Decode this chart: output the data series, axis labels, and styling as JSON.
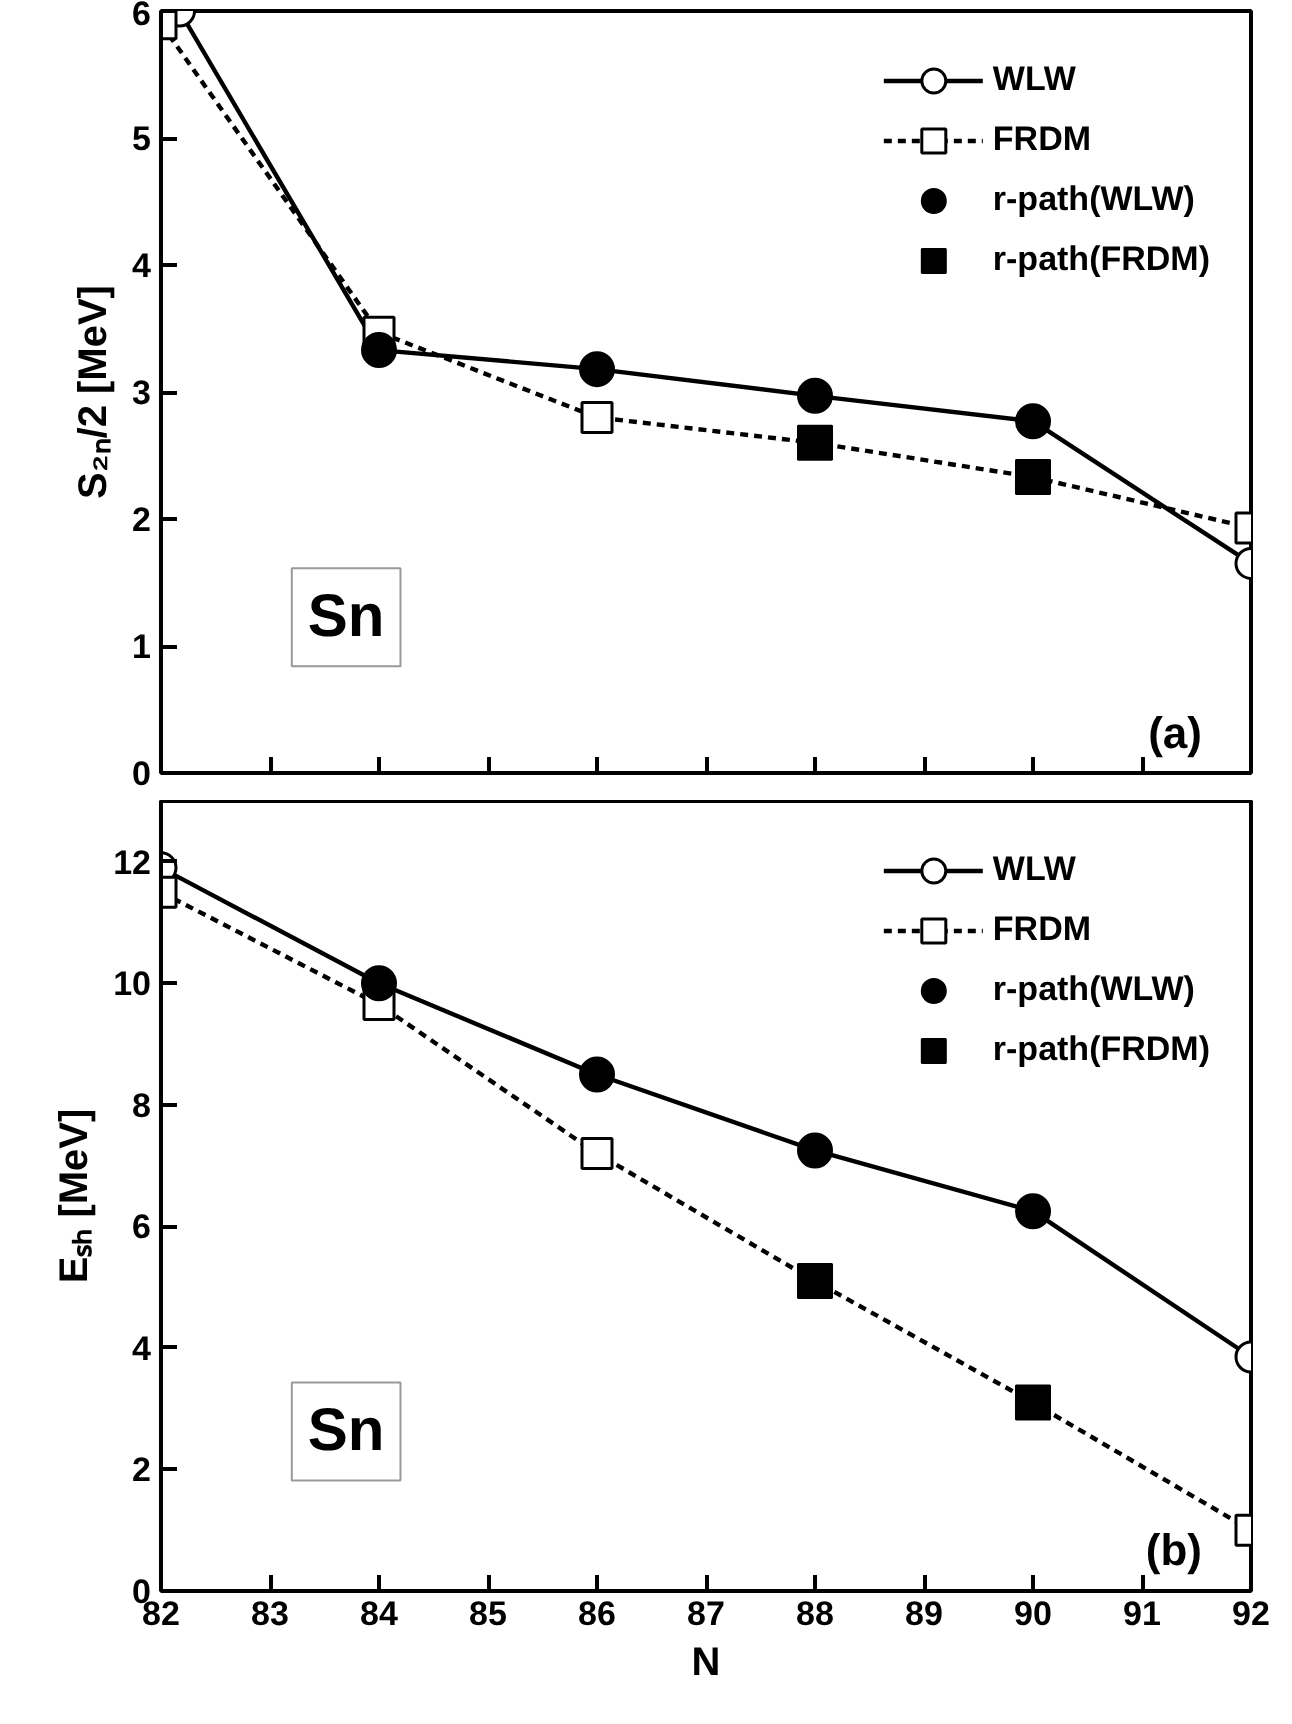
{
  "chart_data": [
    {
      "type": "line",
      "ylabel": "S₂ₙ/2 [MeV]",
      "xlim": [
        82,
        92
      ],
      "xticks": [
        82,
        83,
        84,
        85,
        86,
        87,
        88,
        89,
        90,
        91,
        92
      ],
      "ylim": [
        0,
        6
      ],
      "yticks": [
        0,
        1,
        2,
        3,
        4,
        5,
        6
      ],
      "tick_labels": "y",
      "grid": false,
      "legend": "top right",
      "annotations": [
        "Sn",
        "(a)"
      ],
      "series": [
        {
          "name": "WLW",
          "color": "#000000",
          "marker": "circle",
          "line_style": "solid",
          "x": [
            82.17,
            84,
            86,
            88,
            90,
            92
          ],
          "values": [
            6.0,
            3.33,
            3.18,
            2.97,
            2.77,
            1.65
          ]
        },
        {
          "name": "FRDM",
          "color": "#000000",
          "marker": "square",
          "line_style": "dashed",
          "x": [
            82,
            84,
            86,
            88,
            90,
            92
          ],
          "values": [
            5.9,
            3.47,
            2.8,
            2.6,
            2.33,
            1.93
          ]
        },
        {
          "name": "r-path(WLW)",
          "type": "scatter",
          "color": "#000000",
          "marker": "circle",
          "x": [
            84,
            86,
            88,
            90
          ],
          "values": [
            3.33,
            3.18,
            2.97,
            2.77
          ]
        },
        {
          "name": "r-path(FRDM)",
          "type": "scatter",
          "color": "#000000",
          "marker": "square",
          "x": [
            88,
            90
          ],
          "values": [
            2.6,
            2.33
          ]
        }
      ]
    },
    {
      "type": "line",
      "xlabel": "N",
      "ylabel": "Eₛₕ [MeV]",
      "xlim": [
        82,
        92
      ],
      "xticks": [
        82,
        83,
        84,
        85,
        86,
        87,
        88,
        89,
        90,
        91,
        92
      ],
      "ylim": [
        0,
        13
      ],
      "yticks": [
        0,
        2,
        4,
        6,
        8,
        10,
        12
      ],
      "grid": false,
      "legend": "top right",
      "annotations": [
        "Sn",
        "(b)"
      ],
      "series": [
        {
          "name": "WLW",
          "color": "#000000",
          "marker": "circle",
          "line_style": "solid",
          "x": [
            82,
            84,
            86,
            88,
            90,
            92
          ],
          "values": [
            11.9,
            10.0,
            8.5,
            7.25,
            6.25,
            3.85
          ]
        },
        {
          "name": "FRDM",
          "color": "#000000",
          "marker": "square",
          "line_style": "dashed",
          "x": [
            82,
            84,
            86,
            88,
            90,
            92
          ],
          "values": [
            11.5,
            9.65,
            7.2,
            5.1,
            3.1,
            1.0
          ]
        },
        {
          "name": "r-path(WLW)",
          "type": "scatter",
          "color": "#000000",
          "marker": "circle",
          "x": [
            84,
            86,
            88,
            90
          ],
          "values": [
            10.0,
            8.5,
            7.25,
            6.25
          ]
        },
        {
          "name": "r-path(FRDM)",
          "type": "scatter",
          "color": "#000000",
          "marker": "square",
          "x": [
            88,
            90
          ],
          "values": [
            5.1,
            3.1
          ]
        }
      ]
    }
  ]
}
